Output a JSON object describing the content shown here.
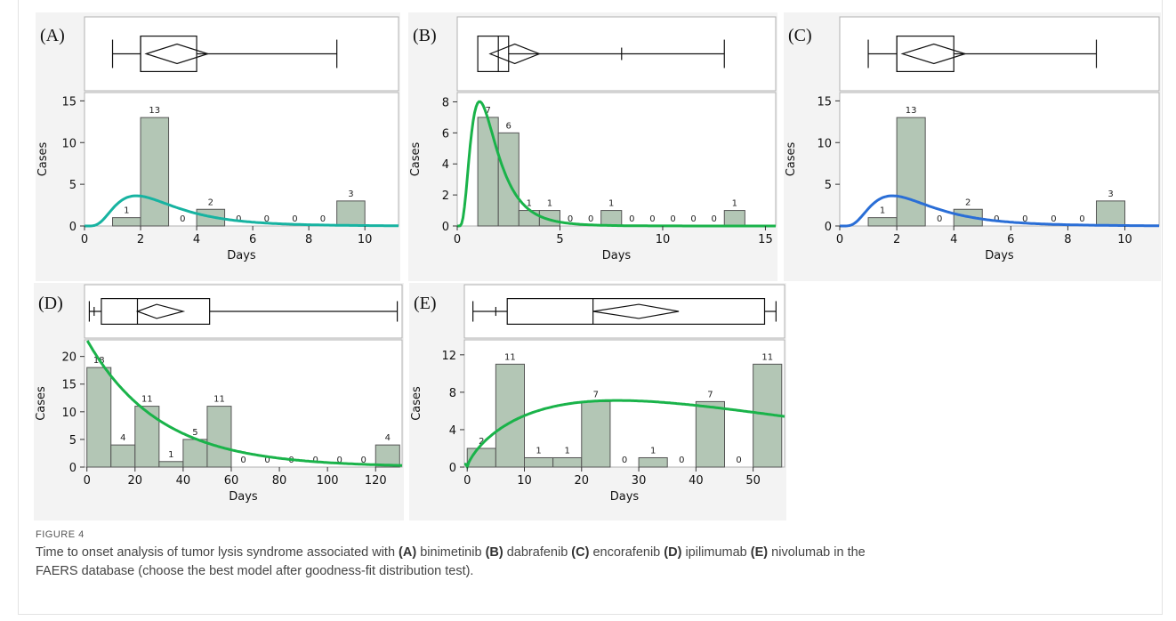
{
  "colors": {
    "bar": "#b3c6b5",
    "bar_stroke": "#555555",
    "fit_teal": "#17b3a1",
    "fit_green": "#1ab34a",
    "fit_blue": "#2a6ed6",
    "panel_bg": "#f3f3f3"
  },
  "chart_data": [
    {
      "type": "bar",
      "panel_label": "(A)",
      "xlabel": "Days",
      "ylabel": "Cases",
      "xlim": [
        0,
        11.2
      ],
      "ylim": [
        0,
        16
      ],
      "xticks": [
        "0",
        "2",
        "4",
        "6",
        "8",
        "10"
      ],
      "xtick_values": [
        0,
        2,
        4,
        6,
        8,
        10
      ],
      "yticks": [
        "0",
        "5",
        "10",
        "15"
      ],
      "ytick_values": [
        0,
        5,
        10,
        15
      ],
      "bins": [
        [
          1,
          2
        ],
        [
          2,
          3
        ],
        [
          3,
          4
        ],
        [
          4,
          5
        ],
        [
          5,
          6
        ],
        [
          6,
          7
        ],
        [
          7,
          8
        ],
        [
          8,
          9
        ],
        [
          9,
          10
        ]
      ],
      "values": [
        1,
        13,
        0,
        2,
        0,
        0,
        0,
        0,
        3
      ],
      "fit_color": "teal",
      "boxplot": {
        "whisker_low": 1,
        "q1": 2,
        "median": 2,
        "q3": 4,
        "whisker_high": 9,
        "mean_low": 2.2,
        "mean": 3.3,
        "mean_high": 4.4
      }
    },
    {
      "type": "bar",
      "panel_label": "(B)",
      "xlabel": "Days",
      "ylabel": "Cases",
      "xlim": [
        0,
        15.5
      ],
      "ylim": [
        0,
        8.6
      ],
      "xticks": [
        "0",
        "5",
        "10",
        "15"
      ],
      "xtick_values": [
        0,
        5,
        10,
        15
      ],
      "yticks": [
        "0",
        "2",
        "4",
        "6",
        "8"
      ],
      "ytick_values": [
        0,
        2,
        4,
        6,
        8
      ],
      "bins": [
        [
          1,
          2
        ],
        [
          2,
          3
        ],
        [
          3,
          4
        ],
        [
          4,
          5
        ],
        [
          5,
          6
        ],
        [
          6,
          7
        ],
        [
          7,
          8
        ],
        [
          8,
          9
        ],
        [
          9,
          10
        ],
        [
          10,
          11
        ],
        [
          11,
          12
        ],
        [
          12,
          13
        ],
        [
          13,
          14
        ]
      ],
      "values": [
        7,
        6,
        1,
        1,
        0,
        0,
        1,
        0,
        0,
        0,
        0,
        0,
        1
      ],
      "fit_color": "green",
      "boxplot": {
        "whisker_low": 1,
        "q1": 1,
        "median": 2,
        "q3": 2.5,
        "whisker_high": 13,
        "mean_low": 1.6,
        "mean": 2.8,
        "mean_high": 4.0,
        "outlier": 8
      }
    },
    {
      "type": "bar",
      "panel_label": "(C)",
      "xlabel": "Days",
      "ylabel": "Cases",
      "xlim": [
        0,
        11.2
      ],
      "ylim": [
        0,
        16
      ],
      "xticks": [
        "0",
        "2",
        "4",
        "6",
        "8",
        "10"
      ],
      "xtick_values": [
        0,
        2,
        4,
        6,
        8,
        10
      ],
      "yticks": [
        "0",
        "5",
        "10",
        "15"
      ],
      "ytick_values": [
        0,
        5,
        10,
        15
      ],
      "bins": [
        [
          1,
          2
        ],
        [
          2,
          3
        ],
        [
          3,
          4
        ],
        [
          4,
          5
        ],
        [
          5,
          6
        ],
        [
          6,
          7
        ],
        [
          7,
          8
        ],
        [
          8,
          9
        ],
        [
          9,
          10
        ]
      ],
      "values": [
        1,
        13,
        0,
        2,
        0,
        0,
        0,
        0,
        3
      ],
      "fit_color": "blue",
      "boxplot": {
        "whisker_low": 1,
        "q1": 2,
        "median": 2,
        "q3": 4,
        "whisker_high": 9,
        "mean_low": 2.2,
        "mean": 3.3,
        "mean_high": 4.4
      }
    },
    {
      "type": "bar",
      "panel_label": "(D)",
      "xlabel": "Days",
      "ylabel": "Cases",
      "xlim": [
        -1,
        131
      ],
      "ylim": [
        0,
        23
      ],
      "xticks": [
        "0",
        "20",
        "40",
        "60",
        "80",
        "100",
        "120"
      ],
      "xtick_values": [
        0,
        20,
        40,
        60,
        80,
        100,
        120
      ],
      "yticks": [
        "0",
        "5",
        "10",
        "15",
        "20"
      ],
      "ytick_values": [
        0,
        5,
        10,
        15,
        20
      ],
      "bins": [
        [
          0,
          10
        ],
        [
          10,
          20
        ],
        [
          20,
          30
        ],
        [
          30,
          40
        ],
        [
          40,
          50
        ],
        [
          50,
          60
        ],
        [
          60,
          70
        ],
        [
          70,
          80
        ],
        [
          80,
          90
        ],
        [
          90,
          100
        ],
        [
          100,
          110
        ],
        [
          110,
          120
        ],
        [
          120,
          130
        ]
      ],
      "values": [
        18,
        4,
        11,
        1,
        5,
        11,
        0,
        0,
        0,
        0,
        0,
        0,
        4
      ],
      "fit_color": "green",
      "boxplot": {
        "whisker_low": 1,
        "q1": 6,
        "median": 21,
        "q3": 51,
        "whisker_high": 129,
        "mean_low": 21,
        "mean": 29,
        "mean_high": 40,
        "outlier": 3
      }
    },
    {
      "type": "bar",
      "panel_label": "(E)",
      "xlabel": "Days",
      "ylabel": "Cases",
      "xlim": [
        -0.5,
        55.5
      ],
      "ylim": [
        0,
        13.6
      ],
      "xticks": [
        "0",
        "10",
        "20",
        "30",
        "40",
        "50"
      ],
      "xtick_values": [
        0,
        10,
        20,
        30,
        40,
        50
      ],
      "yticks": [
        "0",
        "4",
        "8",
        "12"
      ],
      "ytick_values": [
        0,
        4,
        8,
        12
      ],
      "bins": [
        [
          0,
          5
        ],
        [
          5,
          10
        ],
        [
          10,
          15
        ],
        [
          15,
          20
        ],
        [
          20,
          25
        ],
        [
          25,
          30
        ],
        [
          30,
          35
        ],
        [
          35,
          40
        ],
        [
          40,
          45
        ],
        [
          45,
          50
        ],
        [
          50,
          55
        ]
      ],
      "values": [
        2,
        11,
        1,
        1,
        7,
        0,
        1,
        0,
        7,
        0,
        11
      ],
      "fit_color": "green",
      "boxplot": {
        "whisker_low": 1,
        "q1": 7,
        "median": 22,
        "q3": 52,
        "whisker_high": 54,
        "mean_low": 22,
        "mean": 30,
        "mean_high": 37,
        "outlier": 5
      }
    }
  ],
  "caption": {
    "label": "FIGURE 4",
    "text_1": "Time to onset analysis of tumor lysis syndrome associated with ",
    "a": "(A)",
    "drug_a": " binimetinib ",
    "b": "(B)",
    "drug_b": " dabrafenib ",
    "c": "(C)",
    "drug_c": " encorafenib ",
    "d": "(D)",
    "drug_d": " ipilimumab ",
    "e": "(E)",
    "drug_e": " nivolumab in the",
    "text_2": "FAERS database (choose the best model after goodness-fit distribution test)."
  }
}
